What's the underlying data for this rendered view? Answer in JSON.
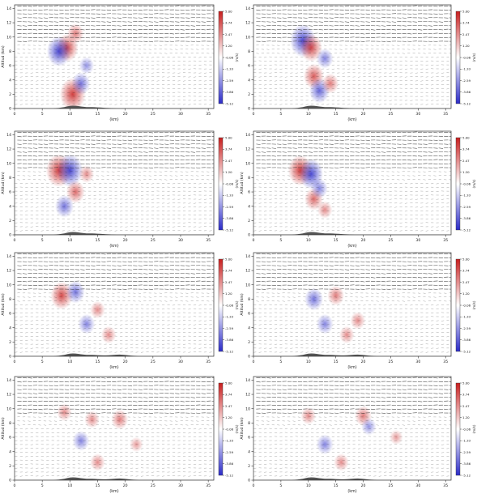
{
  "figure": {
    "colormap": {
      "low": "#2b2bc8",
      "mid": "#ffffff",
      "high": "#c81e1e"
    },
    "terrain_color": "#555555",
    "vector_color": "#1a1a1a"
  },
  "chart_data": [
    {
      "type": "heatmap",
      "panel": "row1-left",
      "xlabel": "(km)",
      "ylabel": "Altitud (km)",
      "colorbar_label": "(m/s)",
      "xlim": [
        0,
        36
      ],
      "ylim": [
        0,
        14.5
      ],
      "xticks": [
        "0",
        "5",
        "10",
        "15",
        "20",
        "25",
        "30",
        "35"
      ],
      "yticks": [
        "0",
        "2",
        "4",
        "6",
        "8",
        "10",
        "12",
        "14"
      ],
      "colorbar_ticks": [
        "5.00",
        "3.74",
        "2.47",
        "1.20",
        "-0.06",
        "-1.33",
        "-2.59",
        "-3.86",
        "-5.12"
      ],
      "colorbar_range": [
        -5.12,
        5.0
      ],
      "anomalies": [
        {
          "x": 9.5,
          "z": 8.5,
          "w": 3.5
        },
        {
          "x": 8.0,
          "z": 8.0,
          "w": -4.0
        },
        {
          "x": 10.5,
          "z": 2.0,
          "w": 4.5
        },
        {
          "x": 12.0,
          "z": 3.5,
          "w": -2.5
        },
        {
          "x": 11.0,
          "z": 10.5,
          "w": 2.0
        },
        {
          "x": 13.0,
          "z": 6.0,
          "w": -1.5
        }
      ]
    },
    {
      "type": "heatmap",
      "panel": "row1-right",
      "xlabel": "(km)",
      "ylabel": "",
      "colorbar_label": "(m/s)",
      "xlim": [
        0,
        36
      ],
      "ylim": [
        0,
        14.5
      ],
      "xticks": [
        "0",
        "5",
        "10",
        "15",
        "20",
        "25",
        "30",
        "35"
      ],
      "yticks": [
        "0",
        "2",
        "4",
        "6",
        "8",
        "10",
        "12",
        "14"
      ],
      "colorbar_ticks": [
        "5.00",
        "3.74",
        "2.47",
        "1.20",
        "-0.06",
        "-1.33",
        "-2.59",
        "-3.86",
        "-5.12"
      ],
      "colorbar_range": [
        -5.12,
        5.0
      ],
      "anomalies": [
        {
          "x": 9.0,
          "z": 9.5,
          "w": -4.5
        },
        {
          "x": 10.5,
          "z": 8.5,
          "w": 3.5
        },
        {
          "x": 11.0,
          "z": 4.5,
          "w": 3.0
        },
        {
          "x": 12.0,
          "z": 2.5,
          "w": -3.0
        },
        {
          "x": 13.0,
          "z": 7.0,
          "w": -2.0
        },
        {
          "x": 14.0,
          "z": 3.5,
          "w": 2.0
        }
      ]
    },
    {
      "type": "heatmap",
      "panel": "row2-left",
      "xlabel": "(km)",
      "ylabel": "Altitud (km)",
      "colorbar_label": "(m/s)",
      "xlim": [
        0,
        36
      ],
      "ylim": [
        0,
        14.5
      ],
      "xticks": [
        "0",
        "5",
        "10",
        "15",
        "20",
        "25",
        "30",
        "35"
      ],
      "yticks": [
        "0",
        "2",
        "4",
        "6",
        "8",
        "10",
        "12",
        "14"
      ],
      "colorbar_ticks": [
        "5.00",
        "3.74",
        "2.47",
        "1.20",
        "-0.06",
        "-1.33",
        "-2.59",
        "-3.86",
        "-5.12"
      ],
      "colorbar_range": [
        -5.12,
        5.0
      ],
      "anomalies": [
        {
          "x": 8.0,
          "z": 9.0,
          "w": 4.5
        },
        {
          "x": 10.0,
          "z": 9.0,
          "w": -4.5
        },
        {
          "x": 11.0,
          "z": 6.0,
          "w": 2.5
        },
        {
          "x": 9.0,
          "z": 4.0,
          "w": -2.5
        },
        {
          "x": 13.0,
          "z": 8.5,
          "w": 1.5
        }
      ]
    },
    {
      "type": "heatmap",
      "panel": "row2-right",
      "xlabel": "(km)",
      "ylabel": "Altitud (km)",
      "colorbar_label": "(m/s)",
      "xlim": [
        0,
        36
      ],
      "ylim": [
        0,
        14.5
      ],
      "xticks": [
        "0",
        "5",
        "10",
        "15",
        "20",
        "25",
        "30",
        "35"
      ],
      "yticks": [
        "0",
        "2",
        "4",
        "6",
        "8",
        "10",
        "12",
        "14"
      ],
      "colorbar_ticks": [
        "5.00",
        "3.74",
        "2.47",
        "1.20",
        "-0.06",
        "-1.33",
        "-2.59",
        "-3.86",
        "-5.12"
      ],
      "colorbar_range": [
        -5.12,
        5.0
      ],
      "anomalies": [
        {
          "x": 8.5,
          "z": 9.0,
          "w": 4.0
        },
        {
          "x": 10.5,
          "z": 8.5,
          "w": -4.0
        },
        {
          "x": 11.0,
          "z": 5.0,
          "w": 2.5
        },
        {
          "x": 12.0,
          "z": 6.5,
          "w": -2.0
        },
        {
          "x": 13.0,
          "z": 3.5,
          "w": 1.5
        }
      ]
    },
    {
      "type": "heatmap",
      "panel": "row3-left",
      "xlabel": "(km)",
      "ylabel": "Altitud (km)",
      "colorbar_label": "(m/s)",
      "xlim": [
        0,
        36
      ],
      "ylim": [
        0,
        14.5
      ],
      "xticks": [
        "0",
        "5",
        "10",
        "15",
        "20",
        "25",
        "30",
        "35"
      ],
      "yticks": [
        "0",
        "2",
        "4",
        "6",
        "8",
        "10",
        "12",
        "14"
      ],
      "colorbar_ticks": [
        "5.00",
        "3.74",
        "2.47",
        "1.20",
        "-0.06",
        "-1.33",
        "-2.59",
        "-3.86",
        "-5.12"
      ],
      "colorbar_range": [
        -5.12,
        5.0
      ],
      "anomalies": [
        {
          "x": 8.5,
          "z": 8.5,
          "w": 3.5
        },
        {
          "x": 11.0,
          "z": 9.0,
          "w": -2.5
        },
        {
          "x": 13.0,
          "z": 4.5,
          "w": -2.0
        },
        {
          "x": 17.0,
          "z": 3.0,
          "w": 1.5
        },
        {
          "x": 15.0,
          "z": 6.5,
          "w": 1.5
        }
      ]
    },
    {
      "type": "heatmap",
      "panel": "row3-right",
      "xlabel": "(km)",
      "ylabel": "Altitud (km)",
      "colorbar_label": "(m/s)",
      "xlim": [
        0,
        36
      ],
      "ylim": [
        0,
        14.5
      ],
      "xticks": [
        "0",
        "5",
        "10",
        "15",
        "20",
        "25",
        "30",
        "35"
      ],
      "yticks": [
        "0",
        "2",
        "4",
        "6",
        "8",
        "10",
        "12",
        "14"
      ],
      "colorbar_ticks": [
        "5.00",
        "3.74",
        "2.47",
        "1.20",
        "-0.06",
        "-1.33",
        "-2.59",
        "-3.86",
        "-5.12"
      ],
      "colorbar_range": [
        -5.12,
        5.0
      ],
      "anomalies": [
        {
          "x": 11.0,
          "z": 8.0,
          "w": -2.5
        },
        {
          "x": 15.0,
          "z": 8.5,
          "w": 2.0
        },
        {
          "x": 13.0,
          "z": 4.5,
          "w": -2.0
        },
        {
          "x": 19.0,
          "z": 5.0,
          "w": 1.5
        },
        {
          "x": 17.0,
          "z": 3.0,
          "w": 1.5
        }
      ]
    },
    {
      "type": "heatmap",
      "panel": "row4-left",
      "xlabel": "(km)",
      "ylabel": "Altitud (km)",
      "colorbar_label": "(m/s)",
      "xlim": [
        0,
        36
      ],
      "ylim": [
        0,
        14.5
      ],
      "xticks": [
        "0",
        "5",
        "10",
        "15",
        "20",
        "25",
        "30",
        "35"
      ],
      "yticks": [
        "0",
        "2",
        "4",
        "6",
        "8",
        "10",
        "12",
        "14"
      ],
      "colorbar_ticks": [
        "5.00",
        "3.74",
        "2.47",
        "1.20",
        "-0.06",
        "-1.33",
        "-2.59",
        "-3.86",
        "-5.12"
      ],
      "colorbar_range": [
        -5.12,
        5.0
      ],
      "anomalies": [
        {
          "x": 9.0,
          "z": 9.5,
          "w": 1.5
        },
        {
          "x": 14.0,
          "z": 8.5,
          "w": 1.5
        },
        {
          "x": 19.0,
          "z": 8.5,
          "w": 2.0
        },
        {
          "x": 12.0,
          "z": 5.5,
          "w": -2.0
        },
        {
          "x": 15.0,
          "z": 2.5,
          "w": 1.5
        },
        {
          "x": 22.0,
          "z": 5.0,
          "w": 1.0
        }
      ]
    },
    {
      "type": "heatmap",
      "panel": "row4-right",
      "xlabel": "(km)",
      "ylabel": "Altitud (km)",
      "colorbar_label": "(m/s)",
      "xlim": [
        0,
        36
      ],
      "ylim": [
        0,
        14.5
      ],
      "xticks": [
        "0",
        "5",
        "10",
        "15",
        "20",
        "25",
        "30",
        "35"
      ],
      "yticks": [
        "0",
        "2",
        "4",
        "6",
        "8",
        "10",
        "12",
        "14"
      ],
      "colorbar_ticks": [
        "5.00",
        "3.74",
        "2.47",
        "1.20",
        "-0.06",
        "-1.33",
        "-2.59",
        "-3.86",
        "-5.12"
      ],
      "colorbar_range": [
        -5.12,
        5.0
      ],
      "anomalies": [
        {
          "x": 10.0,
          "z": 9.0,
          "w": 1.5
        },
        {
          "x": 20.0,
          "z": 9.0,
          "w": 2.0
        },
        {
          "x": 21.0,
          "z": 7.5,
          "w": -1.5
        },
        {
          "x": 13.0,
          "z": 5.0,
          "w": -2.0
        },
        {
          "x": 16.0,
          "z": 2.5,
          "w": 1.5
        },
        {
          "x": 26.0,
          "z": 6.0,
          "w": 1.0
        }
      ]
    }
  ]
}
